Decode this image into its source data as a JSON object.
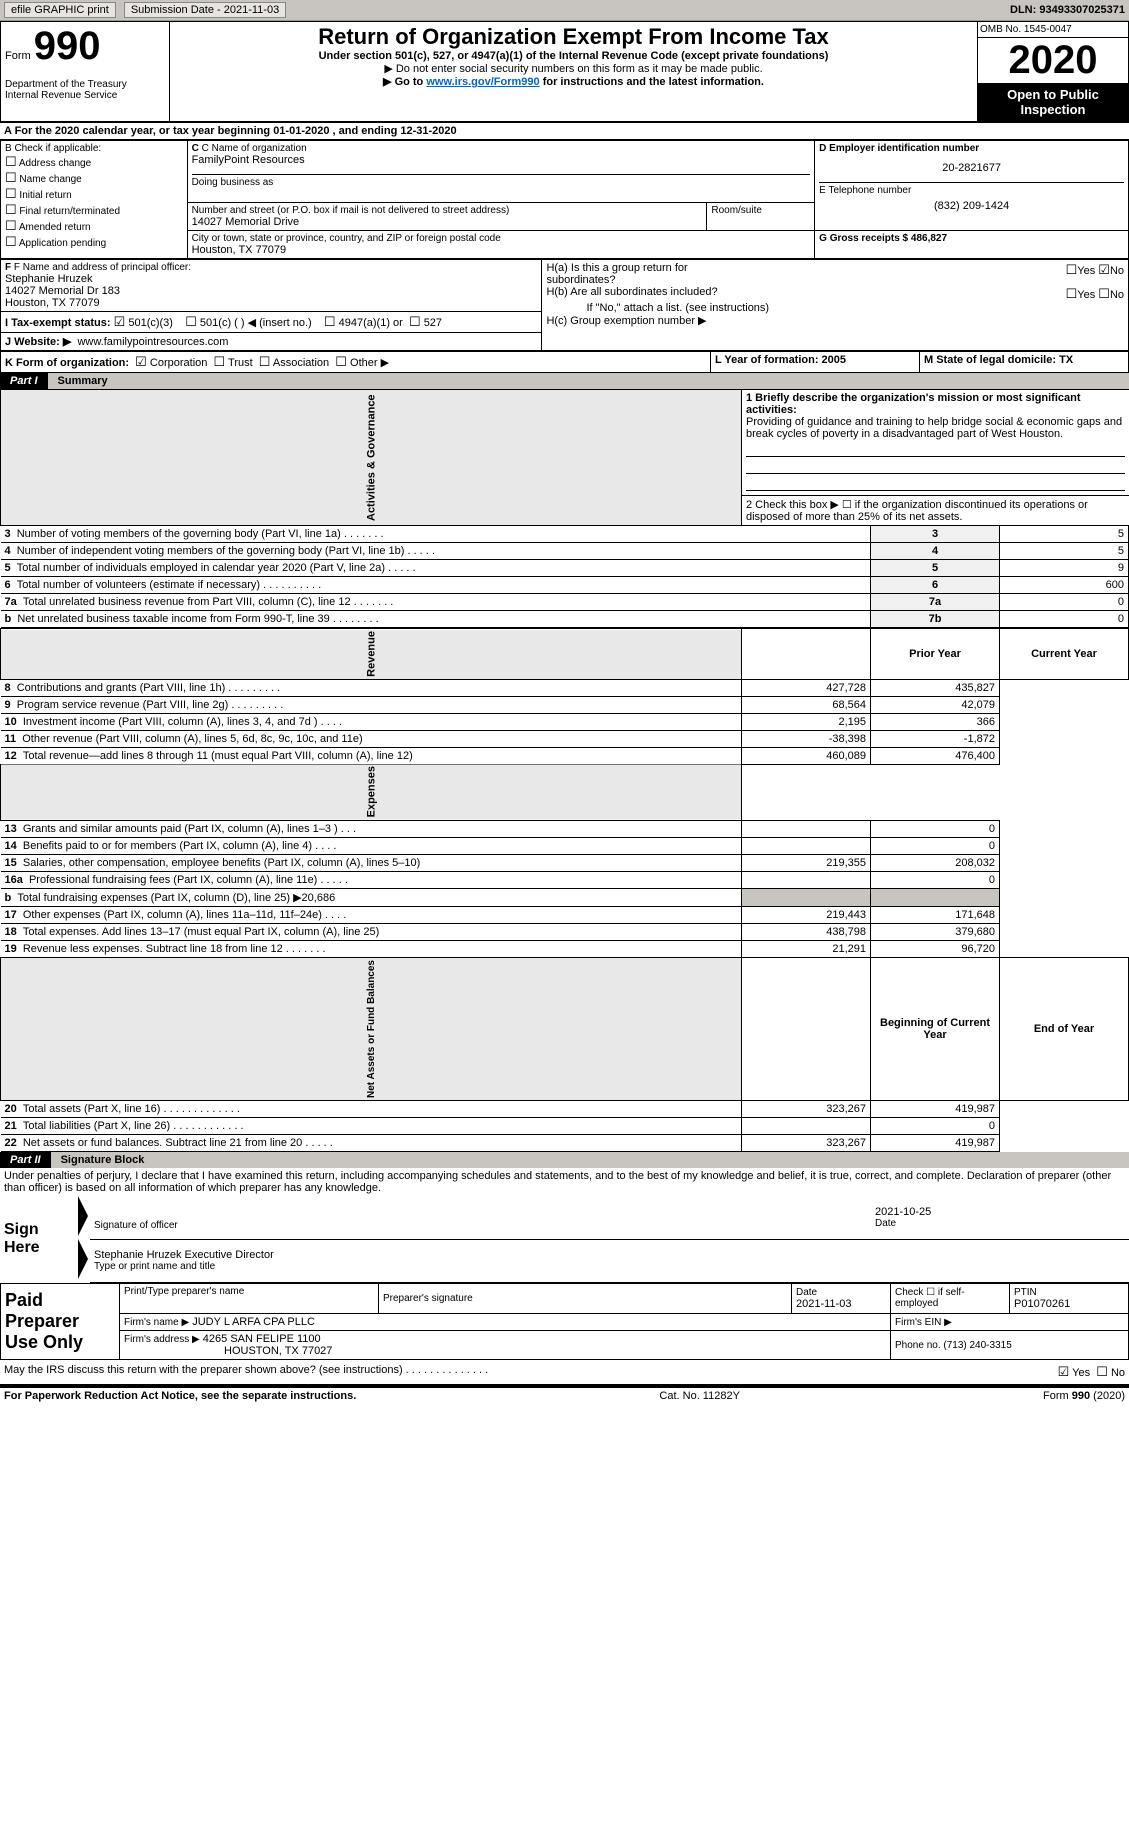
{
  "header": {
    "efile_label": "efile GRAPHIC print",
    "submission_label": "Submission Date - 2021-11-03",
    "dln_label": "DLN: 93493307025371"
  },
  "form_header": {
    "form_label": "Form",
    "form_number": "990",
    "dept": "Department of the Treasury",
    "irs": "Internal Revenue Service",
    "title": "Return of Organization Exempt From Income Tax",
    "subtitle": "Under section 501(c), 527, or 4947(a)(1) of the Internal Revenue Code (except private foundations)",
    "note1": "Do not enter social security numbers on this form as it may be made public.",
    "note2_pre": "Go to ",
    "note2_link": "www.irs.gov/Form990",
    "note2_post": " for instructions and the latest information.",
    "omb": "OMB No. 1545-0047",
    "year": "2020",
    "open": "Open to Public Inspection"
  },
  "period": {
    "line": "A For the 2020 calendar year, or tax year beginning 01-01-2020    , and ending 12-31-2020"
  },
  "box_b": {
    "label": "B Check if applicable:",
    "opts": [
      "Address change",
      "Name change",
      "Initial return",
      "Final return/terminated",
      "Amended return",
      "Application pending"
    ]
  },
  "box_c": {
    "label": "C Name of organization",
    "name": "FamilyPoint Resources",
    "dba_label": "Doing business as",
    "addr_label": "Number and street (or P.O. box if mail is not delivered to street address)",
    "room_label": "Room/suite",
    "addr": "14027 Memorial Drive",
    "city_label": "City or town, state or province, country, and ZIP or foreign postal code",
    "city": "Houston, TX   77079"
  },
  "box_d": {
    "label": "D Employer identification number",
    "value": "20-2821677"
  },
  "box_e": {
    "label": "E Telephone number",
    "value": "(832) 209-1424"
  },
  "box_g": {
    "label": "G Gross receipts $ 486,827"
  },
  "box_f": {
    "label": "F Name and address of principal officer:",
    "name": "Stephanie Hruzek",
    "addr1": "14027 Memorial Dr 183",
    "addr2": "Houston, TX   77079"
  },
  "box_h": {
    "ha": "H(a)  Is this a group return for subordinates?",
    "hb": "H(b)  Are all subordinates included?",
    "hb_note": "If \"No,\" attach a list. (see instructions)",
    "hc": "H(c)  Group exemption number ▶",
    "yes": "Yes",
    "no": "No"
  },
  "box_i": {
    "label": "I   Tax-exempt status:",
    "c3": "501(c)(3)",
    "c": "501(c) (   ) ◀ (insert no.)",
    "a1": "4947(a)(1) or",
    "s527": "527"
  },
  "box_j": {
    "label": "J   Website: ▶",
    "value": "www.familypointresources.com"
  },
  "box_k": {
    "label": "K Form of organization:",
    "corp": "Corporation",
    "trust": "Trust",
    "assoc": "Association",
    "other": "Other ▶"
  },
  "box_l": {
    "label": "L Year of formation: 2005"
  },
  "box_m": {
    "label": "M State of legal domicile: TX"
  },
  "part1": {
    "label": "Part I",
    "title": "Summary",
    "q1_label": "1   Briefly describe the organization's mission or most significant activities:",
    "q1_text": "Providing of guidance and training to help bridge social & economic gaps and break cycles of poverty in a disadvantaged part of West Houston.",
    "q2": "2    Check this box ▶ ☐ if the organization discontinued its operations or disposed of more than 25% of its net assets.",
    "sections": {
      "governance": "Activities & Governance",
      "revenue": "Revenue",
      "expenses": "Expenses",
      "net": "Net Assets or Fund Balances"
    },
    "col_prior": "Prior Year",
    "col_current": "Current Year",
    "col_boy": "Beginning of Current Year",
    "col_eoy": "End of Year",
    "rows_gov": [
      {
        "n": "3",
        "t": "Number of voting members of the governing body (Part VI, line 1a)   .    .    .    .    .    .    .",
        "k": "3",
        "v": "5"
      },
      {
        "n": "4",
        "t": "Number of independent voting members of the governing body (Part VI, line 1b)  .    .    .    .    .",
        "k": "4",
        "v": "5"
      },
      {
        "n": "5",
        "t": "Total number of individuals employed in calendar year 2020 (Part V, line 2a)   .    .    .    .    .",
        "k": "5",
        "v": "9"
      },
      {
        "n": "6",
        "t": "Total number of volunteers (estimate if necessary)   .    .    .    .    .    .    .    .    .    .",
        "k": "6",
        "v": "600"
      },
      {
        "n": "7a",
        "t": "Total unrelated business revenue from Part VIII, column (C), line 12   .    .    .    .    .    .    .",
        "k": "7a",
        "v": "0"
      },
      {
        "n": "b",
        "t": "Net unrelated business taxable income from Form 990-T, line 39   .    .    .    .    .    .    .    .",
        "k": "7b",
        "v": "0"
      }
    ],
    "rows_rev": [
      {
        "n": "8",
        "t": "Contributions and grants (Part VIII, line 1h)   .    .    .    .    .    .    .    .    .",
        "p": "427,728",
        "c": "435,827"
      },
      {
        "n": "9",
        "t": "Program service revenue (Part VIII, line 2g)   .    .    .    .    .    .    .    .    .",
        "p": "68,564",
        "c": "42,079"
      },
      {
        "n": "10",
        "t": "Investment income (Part VIII, column (A), lines 3, 4, and 7d )   .    .    .    .",
        "p": "2,195",
        "c": "366"
      },
      {
        "n": "11",
        "t": "Other revenue (Part VIII, column (A), lines 5, 6d, 8c, 9c, 10c, and 11e)",
        "p": "-38,398",
        "c": "-1,872"
      },
      {
        "n": "12",
        "t": "Total revenue—add lines 8 through 11 (must equal Part VIII, column (A), line 12)",
        "p": "460,089",
        "c": "476,400"
      }
    ],
    "rows_exp": [
      {
        "n": "13",
        "t": "Grants and similar amounts paid (Part IX, column (A), lines 1–3 )   .    .    .",
        "p": "",
        "c": "0"
      },
      {
        "n": "14",
        "t": "Benefits paid to or for members (Part IX, column (A), line 4)   .    .    .    .",
        "p": "",
        "c": "0"
      },
      {
        "n": "15",
        "t": "Salaries, other compensation, employee benefits (Part IX, column (A), lines 5–10)",
        "p": "219,355",
        "c": "208,032"
      },
      {
        "n": "16a",
        "t": "Professional fundraising fees (Part IX, column (A), line 11e)   .    .    .    .    .",
        "p": "",
        "c": "0"
      },
      {
        "n": "b",
        "t": "Total fundraising expenses (Part IX, column (D), line 25) ▶20,686",
        "p": "",
        "c": "",
        "shaded": true
      },
      {
        "n": "17",
        "t": "Other expenses (Part IX, column (A), lines 11a–11d, 11f–24e)   .    .    .    .",
        "p": "219,443",
        "c": "171,648"
      },
      {
        "n": "18",
        "t": "Total expenses. Add lines 13–17 (must equal Part IX, column (A), line 25)",
        "p": "438,798",
        "c": "379,680"
      },
      {
        "n": "19",
        "t": "Revenue less expenses. Subtract line 18 from line 12    .     .    .    .    .    .    .",
        "p": "21,291",
        "c": "96,720"
      }
    ],
    "rows_net": [
      {
        "n": "20",
        "t": "Total assets (Part X, line 16)   .    .    .    .    .    .    .    .    .    .    .    .    .",
        "p": "323,267",
        "c": "419,987"
      },
      {
        "n": "21",
        "t": "Total liabilities (Part X, line 26)   .    .    .    .    .    .    .    .    .    .    .    .",
        "p": "",
        "c": "0"
      },
      {
        "n": "22",
        "t": "Net assets or fund balances. Subtract line 21 from line 20   .    .    .    .    .",
        "p": "323,267",
        "c": "419,987"
      }
    ]
  },
  "part2": {
    "label": "Part II",
    "title": "Signature Block",
    "penalty": "Under penalties of perjury, I declare that I have examined this return, including accompanying schedules and statements, and to the best of my knowledge and belief, it is true, correct, and complete. Declaration of preparer (other than officer) is based on all information of which preparer has any knowledge.",
    "sign_here": "Sign Here",
    "sig_officer": "Signature of officer",
    "sig_date": "2021-10-25",
    "date_label": "Date",
    "officer_name": "Stephanie Hruzek Executive Director",
    "type_name": "Type or print name and title",
    "paid_prep": "Paid Preparer Use Only",
    "prep_name_label": "Print/Type preparer's name",
    "prep_sig_label": "Preparer's signature",
    "prep_date_label": "Date",
    "prep_date": "2021-11-03",
    "self_emp": "Check ☐ if self-employed",
    "ptin_label": "PTIN",
    "ptin": "P01070261",
    "firm_name_label": "Firm's name      ▶",
    "firm_name": "JUDY L ARFA CPA PLLC",
    "firm_ein_label": "Firm's EIN ▶",
    "firm_addr_label": "Firm's address ▶",
    "firm_addr1": "4265 SAN FELIPE 1100",
    "firm_addr2": "HOUSTON, TX   77027",
    "phone_label": "Phone no. (713) 240-3315",
    "discuss": "May the IRS discuss this return with the preparer shown above? (see instructions)   .    .    .    .    .    .    .    .    .    .    .    .    .    .",
    "yes": "Yes",
    "no": "No"
  },
  "footer": {
    "paperwork": "For Paperwork Reduction Act Notice, see the separate instructions.",
    "cat": "Cat. No. 11282Y",
    "form": "Form 990 (2020)"
  }
}
